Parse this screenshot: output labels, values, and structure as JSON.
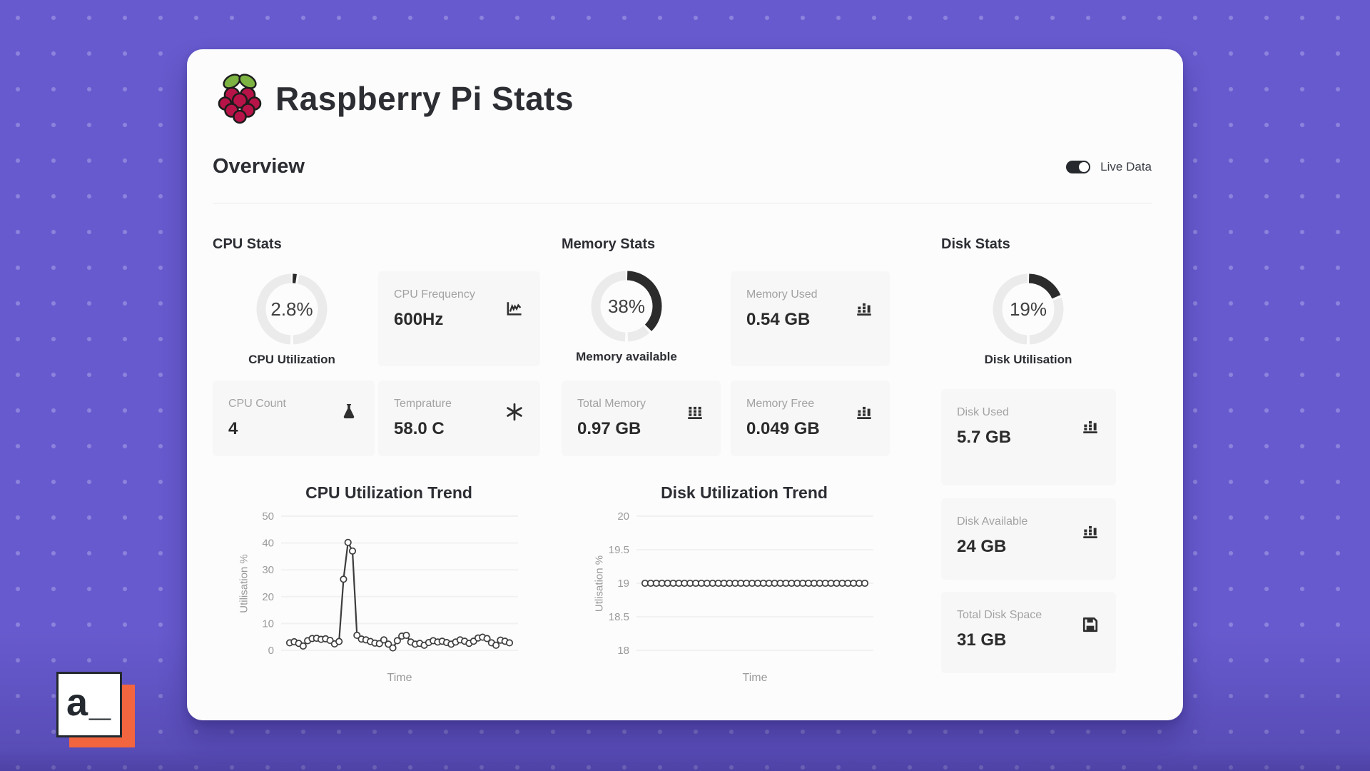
{
  "header": {
    "title": "Raspberry Pi Stats",
    "logo": "raspberry-pi-logo"
  },
  "toolbar": {
    "section_title": "Overview",
    "live_toggle": {
      "label": "Live Data",
      "state": "on"
    }
  },
  "cpu": {
    "section_title": "CPU Stats",
    "gauge": {
      "value_label": "2.8%",
      "percent": 2.8,
      "caption": "CPU Utilization"
    },
    "cards": [
      {
        "label": "CPU Frequency",
        "value": "600Hz",
        "icon": "step-chart-icon"
      },
      {
        "label": "CPU Count",
        "value": "4",
        "icon": "flask-icon"
      },
      {
        "label": "Temprature",
        "value": "58.0 C",
        "icon": "asterisk-icon"
      }
    ]
  },
  "memory": {
    "section_title": "Memory Stats",
    "gauge": {
      "value_label": "38%",
      "percent": 38,
      "caption": "Memory available"
    },
    "cards": [
      {
        "label": "Memory Used",
        "value": "0.54 GB",
        "icon": "bar-chart-icon"
      },
      {
        "label": "Total Memory",
        "value": "0.97 GB",
        "icon": "bar-chart-full-icon"
      },
      {
        "label": "Memory Free",
        "value": "0.049 GB",
        "icon": "bar-chart-icon"
      }
    ]
  },
  "disk": {
    "section_title": "Disk Stats",
    "gauge": {
      "value_label": "19%",
      "percent": 19,
      "caption": "Disk Utilisation"
    },
    "cards": [
      {
        "label": "Disk Used",
        "value": "5.7 GB",
        "icon": "bar-chart-icon"
      },
      {
        "label": "Disk Available",
        "value": "24 GB",
        "icon": "bar-chart-icon"
      },
      {
        "label": "Total Disk Space",
        "value": "31 GB",
        "icon": "floppy-disk-icon"
      }
    ]
  },
  "chart_data": [
    {
      "type": "line",
      "title": "CPU Utilization Trend",
      "xlabel": "Time",
      "ylabel": "Utilisation %",
      "ylim": [
        0,
        50
      ],
      "yticks": [
        0,
        10,
        20,
        30,
        40,
        50
      ],
      "grid": true,
      "values": [
        2.8,
        3.2,
        2.6,
        1.6,
        3.6,
        4.4,
        4.5,
        4.1,
        4.3,
        3.7,
        2.4,
        3.3,
        26.5,
        40.2,
        37.0,
        5.6,
        4.2,
        3.9,
        3.3,
        2.7,
        2.5,
        3.9,
        2.3,
        0.9,
        3.6,
        5.3,
        5.6,
        3.1,
        2.3,
        2.6,
        1.9,
        2.9,
        3.6,
        3.1,
        3.4,
        2.9,
        2.3,
        3.1,
        3.9,
        3.4,
        2.6,
        3.4,
        4.6,
        4.9,
        4.4,
        2.8,
        1.9,
        3.8,
        3.4,
        2.8
      ]
    },
    {
      "type": "line",
      "title": "Disk Utilization Trend",
      "xlabel": "Time",
      "ylabel": "Utlisation %",
      "ylim": [
        18,
        20
      ],
      "yticks": [
        18,
        18.5,
        19,
        19.5,
        20
      ],
      "grid": true,
      "values": [
        19,
        19,
        19,
        19,
        19,
        19,
        19,
        19,
        19,
        19,
        19,
        19,
        19,
        19,
        19,
        19,
        19,
        19,
        19,
        19,
        19,
        19,
        19,
        19,
        19,
        19,
        19,
        19,
        19,
        19,
        19,
        19,
        19,
        19,
        19,
        19,
        19,
        19,
        19,
        19
      ]
    }
  ],
  "branding": {
    "watermark_text": "a_"
  },
  "colors": {
    "background": "#675ace",
    "background_dot": "#8d83dd",
    "card": "#fcfcfc",
    "stat_card": "#f7f7f7",
    "text_dark": "#2c2e33",
    "text_gray": "#a3a3a3",
    "donut_fill": "#2b2b2b",
    "donut_track": "#ebebeb",
    "line_stroke": "#3d3d3d",
    "accent_orange": "#f3653f"
  }
}
